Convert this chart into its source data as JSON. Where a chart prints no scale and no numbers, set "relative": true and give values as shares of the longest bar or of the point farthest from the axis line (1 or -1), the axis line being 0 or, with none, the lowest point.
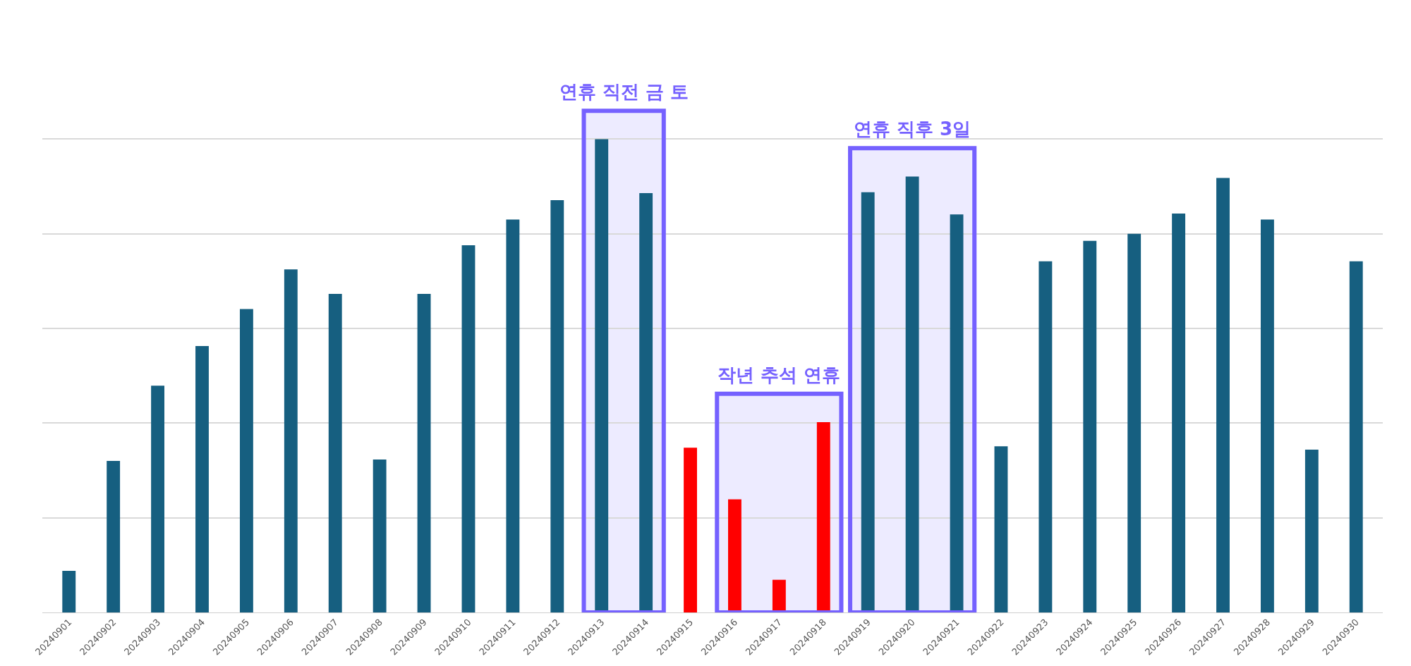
{
  "chart_data": {
    "type": "bar",
    "relative": true,
    "grid": "y",
    "categories": [
      "20240901",
      "20240902",
      "20240903",
      "20240904",
      "20240905",
      "20240906",
      "20240907",
      "20240908",
      "20240909",
      "20240910",
      "20240911",
      "20240912",
      "20240913",
      "20240914",
      "20240915",
      "20240916",
      "20240917",
      "20240918",
      "20240919",
      "20240920",
      "20240921",
      "20240922",
      "20240923",
      "20240924",
      "20240925",
      "20240926",
      "20240927",
      "20240928",
      "20240929",
      "20240930"
    ],
    "values": [
      0.088,
      0.32,
      0.479,
      0.563,
      0.641,
      0.725,
      0.673,
      0.323,
      0.673,
      0.776,
      0.83,
      0.871,
      1,
      0.886,
      0.348,
      0.239,
      0.069,
      0.402,
      0.888,
      0.921,
      0.841,
      0.351,
      0.742,
      0.785,
      0.8,
      0.843,
      0.918,
      0.83,
      0.344,
      0.742
    ],
    "colors": [
      "#165f80",
      "#165f80",
      "#165f80",
      "#165f80",
      "#165f80",
      "#165f80",
      "#165f80",
      "#165f80",
      "#165f80",
      "#165f80",
      "#165f80",
      "#165f80",
      "#165f80",
      "#165f80",
      "#ff0000",
      "#ff0000",
      "#ff0000",
      "#ff0000",
      "#165f80",
      "#165f80",
      "#165f80",
      "#165f80",
      "#165f80",
      "#165f80",
      "#165f80",
      "#165f80",
      "#165f80",
      "#165f80",
      "#165f80",
      "#165f80"
    ],
    "bands": [
      {
        "axis": "x",
        "from": "20240913",
        "to": "20240914",
        "label": "연휴 직전 금 토",
        "color": "#7561ff"
      },
      {
        "axis": "x",
        "from": "20240916",
        "to": "20240918",
        "label": "작년 추석 연휴",
        "color": "#7561ff"
      },
      {
        "axis": "x",
        "from": "20240919",
        "to": "20240921",
        "label": "연휴 직후 3일",
        "color": "#7561ff"
      }
    ]
  }
}
